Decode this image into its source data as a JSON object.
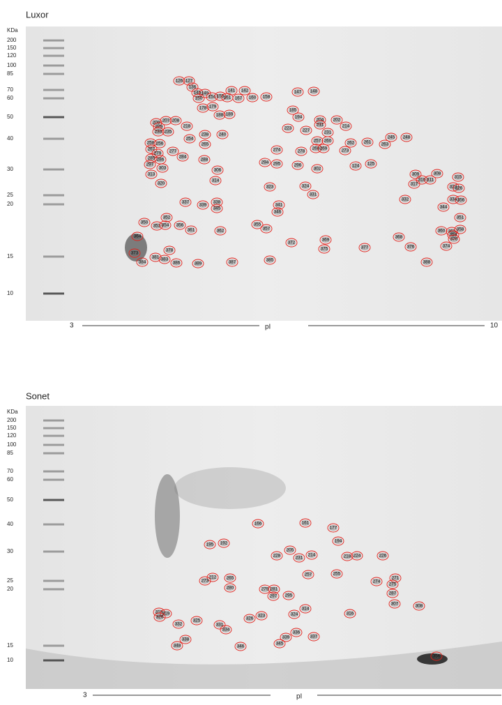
{
  "panels": [
    {
      "title": "Luxor",
      "mw_unit": "KDa",
      "mw_markers": [
        "200",
        "150",
        "120",
        "100",
        "85",
        "70",
        "60",
        "50",
        "40",
        "30",
        "25",
        "20",
        "15",
        "10"
      ],
      "axis_start": "3",
      "axis_label": "pI",
      "axis_end": "10",
      "spots": [
        "126",
        "127",
        "136",
        "145",
        "149",
        "150",
        "154",
        "155",
        "161",
        "167",
        "141",
        "142",
        "160",
        "158",
        "147",
        "148",
        "178",
        "179",
        "188",
        "189",
        "185",
        "194",
        "204",
        "202",
        "214",
        "223",
        "227",
        "211",
        "231",
        "257",
        "260",
        "268",
        "269",
        "262",
        "261",
        "263",
        "245",
        "248",
        "273",
        "278",
        "274",
        "294",
        "295",
        "296",
        "302",
        "124",
        "125",
        "209",
        "207",
        "208",
        "218",
        "229",
        "233",
        "235",
        "238",
        "240",
        "254",
        "265",
        "258",
        "256",
        "267",
        "277",
        "284",
        "279",
        "285",
        "286",
        "297",
        "303",
        "313",
        "288",
        "306",
        "314",
        "320",
        "323",
        "324",
        "331",
        "337",
        "339",
        "338",
        "345",
        "341",
        "346",
        "352",
        "350",
        "353",
        "354",
        "356",
        "361",
        "362",
        "355",
        "357",
        "364",
        "372",
        "369",
        "375",
        "377",
        "368",
        "376",
        "360",
        "363",
        "358",
        "359",
        "370",
        "374",
        "388",
        "332",
        "315",
        "322",
        "326",
        "334",
        "356",
        "344",
        "351",
        "309",
        "308",
        "310",
        "311",
        "317",
        "373",
        "384",
        "381",
        "383",
        "378",
        "386",
        "389",
        "387",
        "385"
      ]
    },
    {
      "title": "Sonet",
      "mw_unit": "KDa",
      "mw_markers": [
        "200",
        "150",
        "120",
        "100",
        "85",
        "70",
        "60",
        "50",
        "40",
        "30",
        "25",
        "20",
        "15",
        "10"
      ],
      "axis_start": "3",
      "axis_label": "pI",
      "spots": [
        "166",
        "161",
        "177",
        "194",
        "195",
        "192",
        "205",
        "228",
        "231",
        "214",
        "218",
        "224",
        "226",
        "257",
        "255",
        "274",
        "271",
        "275",
        "287",
        "307",
        "308",
        "212",
        "265",
        "273",
        "280",
        "279",
        "281",
        "297",
        "295",
        "314",
        "324",
        "316",
        "318",
        "319",
        "320",
        "332",
        "325",
        "326",
        "323",
        "331",
        "334",
        "336",
        "339",
        "337",
        "345",
        "346",
        "338",
        "348",
        "356"
      ]
    }
  ]
}
